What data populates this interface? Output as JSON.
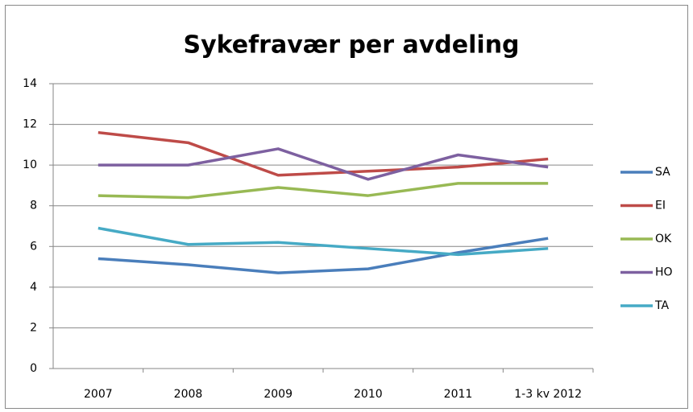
{
  "chart_data": {
    "type": "line",
    "title": "Sykefravær per avdeling",
    "categories": [
      "2007",
      "2008",
      "2009",
      "2010",
      "2011",
      "1-3 kv 2012"
    ],
    "series": [
      {
        "name": "SA",
        "color": "#4a7ebb",
        "values": [
          5.4,
          5.1,
          4.7,
          4.9,
          5.7,
          6.4
        ]
      },
      {
        "name": "EI",
        "color": "#be4b48",
        "values": [
          11.6,
          11.1,
          9.5,
          9.7,
          9.9,
          10.3
        ]
      },
      {
        "name": "OK",
        "color": "#98b954",
        "values": [
          8.5,
          8.4,
          8.9,
          8.5,
          9.1,
          9.1
        ]
      },
      {
        "name": "HO",
        "color": "#7d60a0",
        "values": [
          10.0,
          10.0,
          10.8,
          9.3,
          10.5,
          9.9
        ]
      },
      {
        "name": "TA",
        "color": "#46aac5",
        "values": [
          6.9,
          6.1,
          6.2,
          5.9,
          5.6,
          5.9
        ]
      }
    ],
    "ylim": [
      0,
      14
    ],
    "yticks": [
      0,
      2,
      4,
      6,
      8,
      10,
      12,
      14
    ],
    "grid": true,
    "legend": "right"
  }
}
